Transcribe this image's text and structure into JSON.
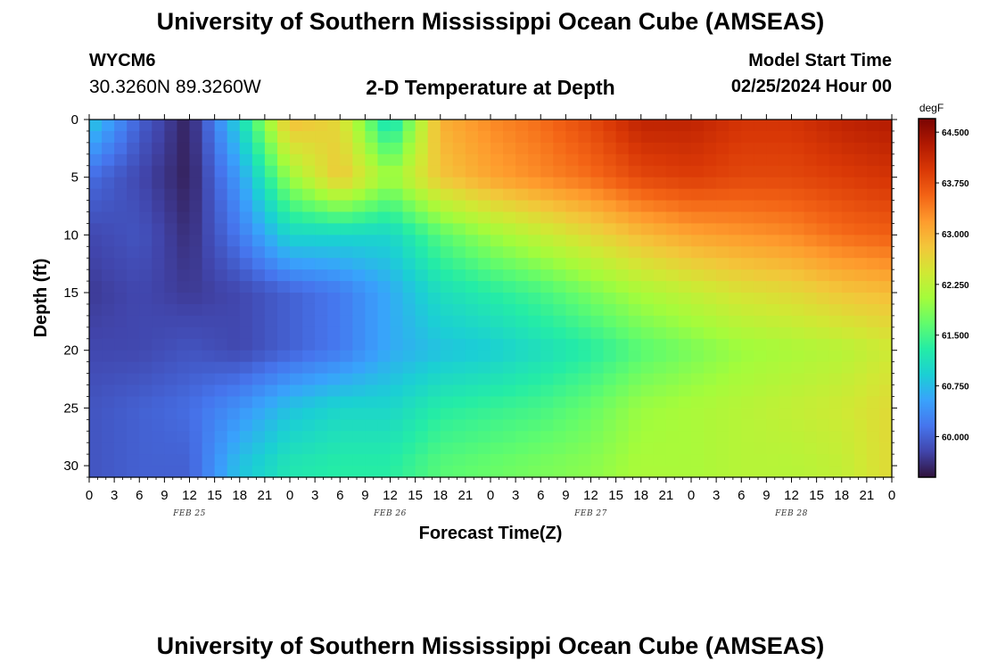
{
  "page": {
    "title": "University of Southern Mississippi Ocean Cube (AMSEAS)",
    "footer_title": "University of Southern Mississippi Ocean Cube (AMSEAS)",
    "station_id": "WYCM6",
    "coords": "30.3260N  89.3260W",
    "subtitle": "2-D Temperature at Depth",
    "model_start_label": "Model Start Time",
    "model_start_value": "02/25/2024 Hour 00"
  },
  "chart_data": {
    "type": "heatmap",
    "title": "2-D Temperature at Depth",
    "xlabel": "Forecast Time(Z)",
    "ylabel": "Depth (ft)",
    "x_unit": "forecast hour",
    "xlim": [
      0,
      96
    ],
    "x_ticks": [
      0,
      3,
      6,
      9,
      12,
      15,
      18,
      21,
      24,
      27,
      30,
      33,
      36,
      39,
      42,
      45,
      48,
      51,
      54,
      57,
      60,
      63,
      66,
      69,
      72,
      75,
      78,
      81,
      84,
      87,
      90,
      93,
      96
    ],
    "x_tick_labels": [
      "0",
      "3",
      "6",
      "9",
      "12",
      "15",
      "18",
      "21",
      "0",
      "3",
      "6",
      "9",
      "12",
      "15",
      "18",
      "21",
      "0",
      "3",
      "6",
      "9",
      "12",
      "15",
      "18",
      "21",
      "0",
      "3",
      "6",
      "9",
      "12",
      "15",
      "18",
      "21",
      "0"
    ],
    "date_labels": [
      {
        "label": "FEB 25",
        "hour": 12
      },
      {
        "label": "FEB 26",
        "hour": 36
      },
      {
        "label": "FEB 27",
        "hour": 60
      },
      {
        "label": "FEB 28",
        "hour": 84
      }
    ],
    "ylim": [
      0,
      31
    ],
    "y_ticks": [
      0,
      5,
      10,
      15,
      20,
      25,
      30
    ],
    "y_inverted": true,
    "colorbar": {
      "unit": "degF",
      "ticks": [
        60.0,
        60.75,
        61.5,
        62.25,
        63.0,
        63.75,
        64.5
      ],
      "tick_labels": [
        "60.000",
        "60.750",
        "61.500",
        "62.250",
        "63.000",
        "63.750",
        "64.500"
      ],
      "range": [
        59.4,
        64.7
      ],
      "colormap": [
        "#30123b",
        "#4145ab",
        "#4675ed",
        "#39a2fc",
        "#1bcfd4",
        "#24eca6",
        "#61fc6c",
        "#a4fc3b",
        "#d1e834",
        "#f3c63a",
        "#fe9b2d",
        "#f36315",
        "#d93806",
        "#b11901",
        "#7a0403"
      ]
    },
    "z_description_hours": [
      0,
      6,
      12,
      18,
      24,
      30,
      36,
      42,
      48,
      54,
      60,
      66,
      72,
      78,
      84,
      90,
      96
    ],
    "z_description_depths": [
      0,
      5,
      10,
      15,
      20,
      25,
      30
    ],
    "z": [
      [
        60.9,
        60.0,
        59.5,
        61.0,
        62.9,
        62.6,
        61.0,
        63.0,
        63.3,
        63.5,
        63.8,
        64.2,
        64.2,
        64.0,
        64.0,
        64.2,
        64.3
      ],
      [
        60.1,
        59.8,
        59.5,
        60.5,
        62.0,
        62.8,
        62.0,
        62.8,
        63.1,
        63.3,
        63.5,
        63.8,
        63.9,
        63.8,
        63.8,
        63.9,
        64.0
      ],
      [
        59.8,
        59.9,
        59.6,
        60.2,
        61.0,
        61.0,
        61.0,
        61.6,
        62.0,
        62.3,
        62.6,
        62.9,
        63.1,
        63.2,
        63.3,
        63.5,
        63.6
      ],
      [
        59.7,
        59.8,
        59.7,
        59.8,
        60.0,
        60.2,
        60.6,
        61.1,
        61.3,
        61.5,
        61.8,
        62.1,
        62.3,
        62.5,
        62.6,
        62.8,
        62.9
      ],
      [
        59.8,
        59.8,
        59.9,
        59.8,
        60.0,
        60.2,
        60.6,
        60.8,
        60.9,
        61.1,
        61.3,
        61.6,
        61.8,
        62.0,
        62.1,
        62.2,
        62.4
      ],
      [
        59.9,
        60.0,
        60.1,
        60.4,
        60.8,
        61.0,
        61.0,
        61.3,
        61.4,
        61.5,
        61.7,
        62.0,
        62.1,
        62.2,
        62.3,
        62.4,
        62.6
      ],
      [
        59.9,
        60.0,
        60.0,
        60.8,
        61.2,
        61.3,
        61.3,
        61.6,
        61.7,
        61.8,
        61.9,
        62.1,
        62.1,
        62.2,
        62.2,
        62.3,
        62.6
      ]
    ]
  }
}
